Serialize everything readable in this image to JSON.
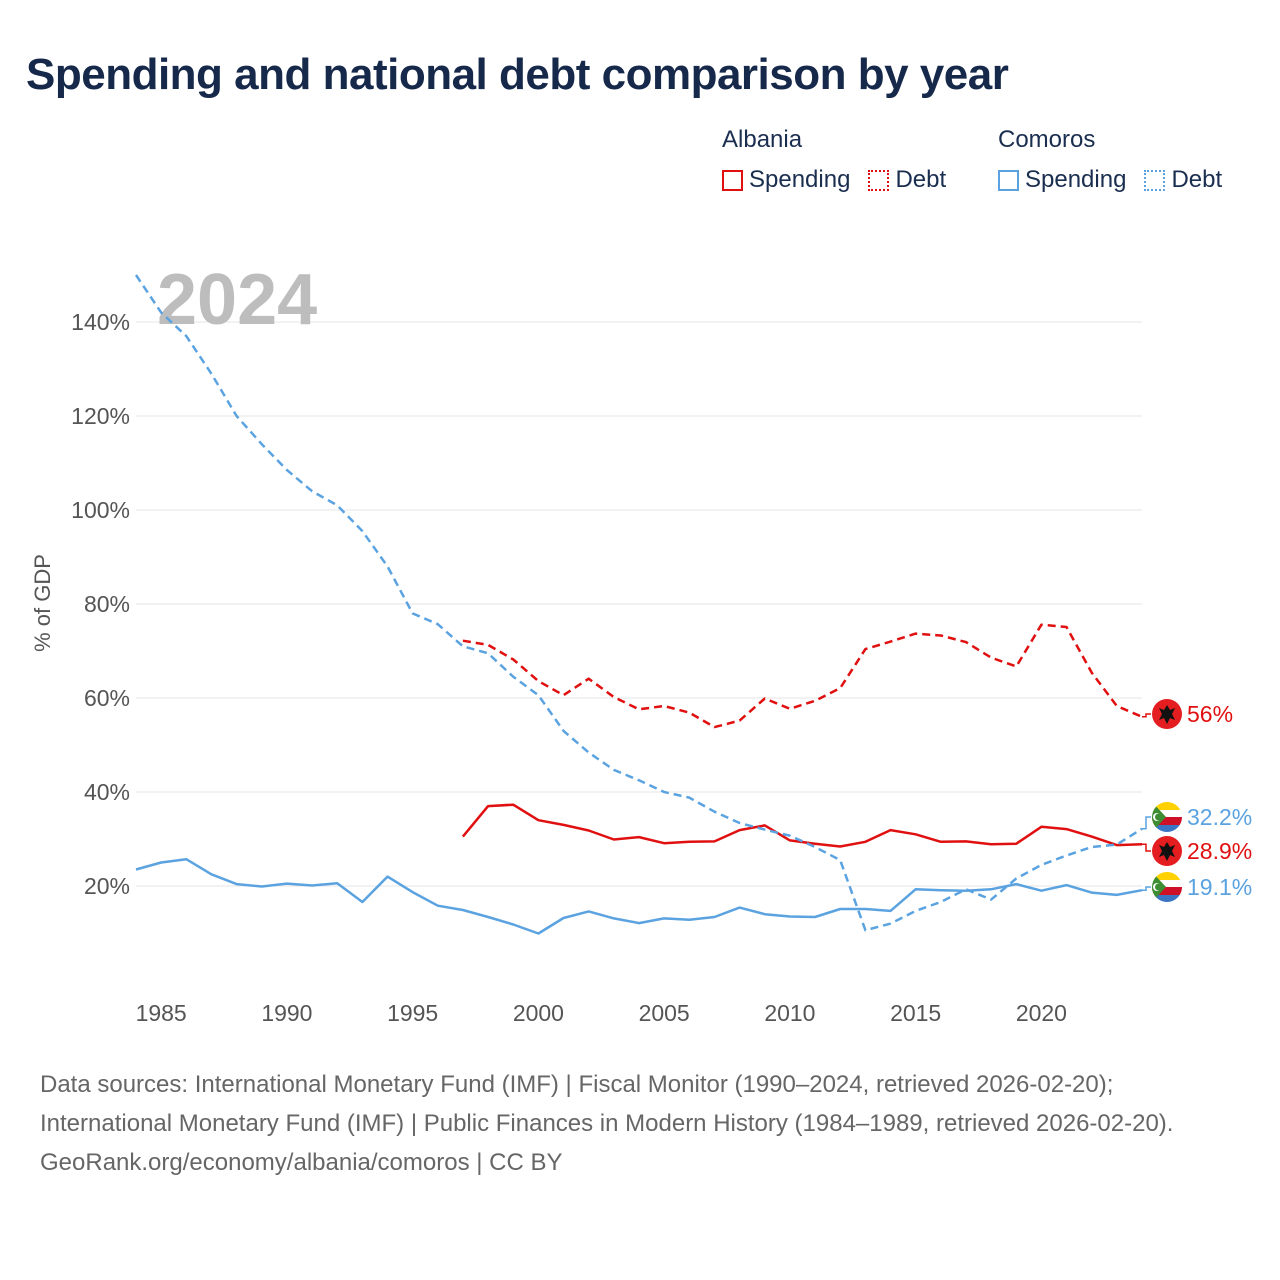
{
  "title": "Spending and national debt comparison by year",
  "legend": [
    {
      "country": "Albania",
      "color": "#e01010",
      "items": [
        {
          "label": "Spending",
          "style": "solid"
        },
        {
          "label": "Debt",
          "style": "dotted"
        }
      ]
    },
    {
      "country": "Comoros",
      "color": "#5ba3e0",
      "items": [
        {
          "label": "Spending",
          "style": "solid"
        },
        {
          "label": "Debt",
          "style": "dotted"
        }
      ]
    }
  ],
  "chart_data": {
    "type": "line",
    "title": "Spending and national debt comparison by year",
    "year_label": "2024",
    "ylabel": "% of GDP",
    "xlim": [
      1984,
      2024
    ],
    "ylim": [
      0,
      150
    ],
    "x_ticks": [
      1985,
      1990,
      1995,
      2000,
      2005,
      2010,
      2015,
      2020
    ],
    "y_ticks": [
      20,
      40,
      60,
      80,
      100,
      120,
      140
    ],
    "y_tick_labels": [
      "20%",
      "40%",
      "60%",
      "80%",
      "100%",
      "120%",
      "140%"
    ],
    "series": [
      {
        "name": "Albania Spending",
        "country": "Albania",
        "kind": "spending",
        "color": "#e01010",
        "dashed": false,
        "end_label": "28.9%",
        "x": [
          1997,
          1998,
          1999,
          2000,
          2001,
          2002,
          2003,
          2004,
          2005,
          2006,
          2007,
          2008,
          2009,
          2010,
          2011,
          2012,
          2013,
          2014,
          2015,
          2016,
          2017,
          2018,
          2019,
          2020,
          2021,
          2022,
          2023,
          2024
        ],
        "y": [
          30.5,
          37.0,
          37.3,
          34.0,
          33.0,
          31.8,
          29.9,
          30.4,
          29.1,
          29.4,
          29.5,
          31.9,
          32.9,
          29.7,
          29.0,
          28.4,
          29.4,
          31.9,
          31.0,
          29.4,
          29.5,
          28.9,
          29.0,
          32.6,
          32.1,
          30.5,
          28.7,
          28.9
        ]
      },
      {
        "name": "Albania Debt",
        "country": "Albania",
        "kind": "debt",
        "color": "#e01010",
        "dashed": true,
        "end_label": "56%",
        "x": [
          1997,
          1998,
          1999,
          2000,
          2001,
          2002,
          2003,
          2004,
          2005,
          2006,
          2007,
          2008,
          2009,
          2010,
          2011,
          2012,
          2013,
          2014,
          2015,
          2016,
          2017,
          2018,
          2019,
          2020,
          2021,
          2022,
          2023,
          2024
        ],
        "y": [
          72.2,
          71.3,
          68.2,
          63.6,
          60.6,
          64.1,
          60.2,
          57.6,
          58.3,
          56.9,
          53.8,
          55.2,
          59.9,
          57.7,
          59.4,
          62.1,
          70.4,
          72.0,
          73.7,
          73.3,
          71.9,
          68.6,
          66.7,
          75.6,
          75.1,
          65.4,
          58.3,
          56.0
        ]
      },
      {
        "name": "Comoros Spending",
        "country": "Comoros",
        "kind": "spending",
        "color": "#5ba3e0",
        "dashed": false,
        "end_label": "19.1%",
        "x": [
          1984,
          1985,
          1986,
          1987,
          1988,
          1989,
          1990,
          1991,
          1992,
          1993,
          1994,
          1995,
          1996,
          1997,
          1998,
          1999,
          2000,
          2001,
          2002,
          2003,
          2004,
          2005,
          2006,
          2007,
          2008,
          2009,
          2010,
          2011,
          2012,
          2013,
          2014,
          2015,
          2016,
          2017,
          2018,
          2019,
          2020,
          2021,
          2022,
          2023,
          2024
        ],
        "y": [
          23.5,
          25.0,
          25.7,
          22.5,
          20.4,
          19.9,
          20.5,
          20.1,
          20.6,
          16.6,
          22.0,
          18.7,
          15.8,
          14.9,
          13.4,
          11.8,
          9.9,
          13.2,
          14.6,
          13.1,
          12.1,
          13.1,
          12.8,
          13.4,
          15.4,
          14.0,
          13.5,
          13.4,
          15.1,
          15.1,
          14.7,
          19.3,
          19.1,
          19.0,
          19.3,
          20.4,
          19.0,
          20.2,
          18.6,
          18.1,
          19.1
        ]
      },
      {
        "name": "Comoros Debt",
        "country": "Comoros",
        "kind": "debt",
        "color": "#5ba3e0",
        "dashed": true,
        "end_label": "32.2%",
        "x": [
          1984,
          1985,
          1986,
          1987,
          1988,
          1989,
          1990,
          1991,
          1992,
          1993,
          1994,
          1995,
          1996,
          1997,
          1998,
          1999,
          2000,
          2001,
          2002,
          2003,
          2004,
          2005,
          2006,
          2007,
          2008,
          2009,
          2010,
          2011,
          2012,
          2013,
          2014,
          2015,
          2016,
          2017,
          2018,
          2019,
          2020,
          2021,
          2022,
          2023,
          2024
        ],
        "y": [
          150.0,
          142.0,
          137.0,
          129.0,
          120.0,
          114.0,
          108.5,
          104.0,
          101.0,
          95.5,
          88.0,
          78.0,
          75.7,
          71.0,
          69.5,
          64.5,
          60.6,
          53.0,
          48.4,
          44.7,
          42.5,
          40.0,
          38.8,
          35.8,
          33.4,
          32.0,
          30.7,
          28.3,
          25.5,
          10.6,
          12.0,
          14.7,
          16.6,
          19.3,
          17.1,
          21.6,
          24.5,
          26.5,
          28.3,
          28.8,
          32.2
        ]
      }
    ]
  },
  "footer": {
    "sources": "Data sources: International Monetary Fund (IMF) | Fiscal Monitor (1990–2024, retrieved 2026-02-20); International Monetary Fund (IMF) | Public Finances in Modern History (1984–1989, retrieved 2026-02-20).",
    "credit": "GeoRank.org/economy/albania/comoros | CC BY"
  }
}
